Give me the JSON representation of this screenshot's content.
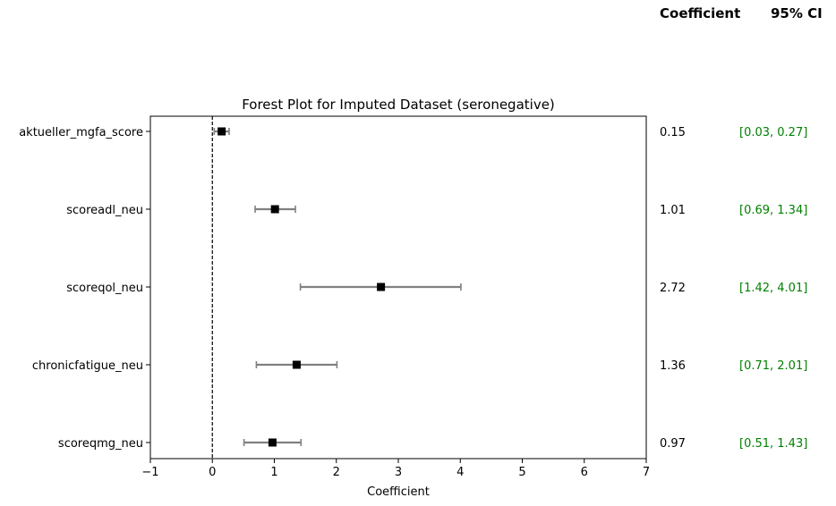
{
  "header": {
    "coef_label": "Coefficient",
    "ci_label": "95% CI"
  },
  "chart_data": {
    "type": "forest",
    "title": "Forest Plot for Imputed Dataset (seronegative)",
    "xlabel": "Coefficient",
    "ylabel": "",
    "xlim": [
      -1,
      7
    ],
    "xticks": [
      -1,
      0,
      1,
      2,
      3,
      4,
      5,
      6,
      7
    ],
    "xtick_labels": [
      "−1",
      "0",
      "1",
      "2",
      "3",
      "4",
      "5",
      "6",
      "7"
    ],
    "reference_line": 0,
    "grid": false,
    "variables": [
      {
        "name": "aktueller_mgfa_score",
        "coef": 0.15,
        "ci_low": 0.03,
        "ci_high": 0.27,
        "coef_text": "0.15",
        "ci_text": "[0.03, 0.27]"
      },
      {
        "name": "scoreadl_neu",
        "coef": 1.01,
        "ci_low": 0.69,
        "ci_high": 1.34,
        "coef_text": "1.01",
        "ci_text": "[0.69, 1.34]"
      },
      {
        "name": "scoreqol_neu",
        "coef": 2.72,
        "ci_low": 1.42,
        "ci_high": 4.01,
        "coef_text": "2.72",
        "ci_text": "[1.42, 4.01]"
      },
      {
        "name": "chronicfatigue_neu",
        "coef": 1.36,
        "ci_low": 0.71,
        "ci_high": 2.01,
        "coef_text": "1.36",
        "ci_text": "[0.71, 2.01]"
      },
      {
        "name": "scoreqmg_neu",
        "coef": 0.97,
        "ci_low": 0.51,
        "ci_high": 1.43,
        "coef_text": "0.97",
        "ci_text": "[0.51, 1.43]"
      }
    ],
    "colors": {
      "marker": "#000000",
      "ci_line": "#808080",
      "ci_text": "#008000",
      "ref_line": "#000000"
    }
  }
}
